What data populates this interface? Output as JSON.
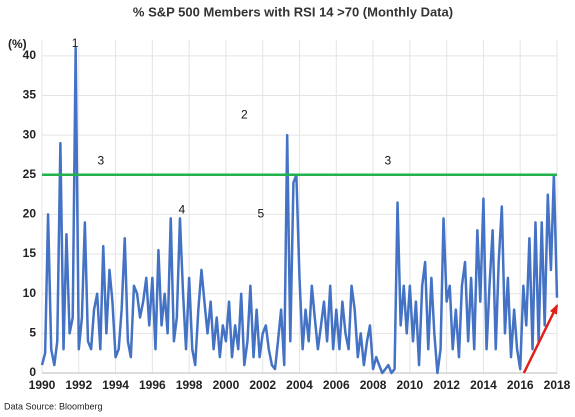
{
  "chart_data": {
    "type": "line",
    "title": "% S&P 500 Members with RSI 14 >70 (Monthly Data)",
    "y_label": "(%)",
    "source": "Data Source:  Bloomberg",
    "color": "#4472c4",
    "x": [
      1990,
      1990.17,
      1990.33,
      1990.5,
      1990.67,
      1990.83,
      1991,
      1991.17,
      1991.33,
      1991.5,
      1991.67,
      1991.83,
      1992,
      1992.17,
      1992.33,
      1992.5,
      1992.67,
      1992.83,
      1993,
      1993.17,
      1993.33,
      1993.5,
      1993.67,
      1993.83,
      1994,
      1994.17,
      1994.33,
      1994.5,
      1994.67,
      1994.83,
      1995,
      1995.17,
      1995.33,
      1995.5,
      1995.67,
      1995.83,
      1996,
      1996.17,
      1996.33,
      1996.5,
      1996.67,
      1996.83,
      1997,
      1997.17,
      1997.33,
      1997.5,
      1997.67,
      1997.83,
      1998,
      1998.17,
      1998.33,
      1998.5,
      1998.67,
      1998.83,
      1999,
      1999.17,
      1999.33,
      1999.5,
      1999.67,
      1999.83,
      2000,
      2000.17,
      2000.33,
      2000.5,
      2000.67,
      2000.83,
      2001,
      2001.17,
      2001.33,
      2001.5,
      2001.67,
      2001.83,
      2002,
      2002.17,
      2002.33,
      2002.5,
      2002.67,
      2002.83,
      2003,
      2003.17,
      2003.33,
      2003.5,
      2003.67,
      2003.83,
      2004,
      2004.17,
      2004.33,
      2004.5,
      2004.67,
      2004.83,
      2005,
      2005.17,
      2005.33,
      2005.5,
      2005.67,
      2005.83,
      2006,
      2006.17,
      2006.33,
      2006.5,
      2006.67,
      2006.83,
      2007,
      2007.17,
      2007.33,
      2007.5,
      2007.67,
      2007.83,
      2008,
      2008.17,
      2008.33,
      2008.5,
      2008.67,
      2008.83,
      2009,
      2009.17,
      2009.33,
      2009.5,
      2009.67,
      2009.83,
      2010,
      2010.17,
      2010.33,
      2010.5,
      2010.67,
      2010.83,
      2011,
      2011.17,
      2011.33,
      2011.5,
      2011.67,
      2011.83,
      2012,
      2012.17,
      2012.33,
      2012.5,
      2012.67,
      2012.83,
      2013,
      2013.17,
      2013.33,
      2013.5,
      2013.67,
      2013.83,
      2014,
      2014.17,
      2014.33,
      2014.5,
      2014.67,
      2014.83,
      2015,
      2015.17,
      2015.33,
      2015.5,
      2015.67,
      2015.83,
      2016,
      2016.17,
      2016.33,
      2016.5,
      2016.67,
      2016.83,
      2017,
      2017.17,
      2017.33,
      2017.5,
      2017.67,
      2017.83,
      2018
    ],
    "values": [
      1,
      2.5,
      20,
      3,
      1,
      4,
      29,
      3,
      17.5,
      5,
      7,
      41,
      3,
      7,
      19,
      4,
      3,
      8,
      10,
      3,
      16,
      5,
      13,
      9,
      2,
      3,
      8,
      17,
      4,
      2,
      11,
      10,
      7,
      9,
      12,
      6,
      12,
      3,
      15.5,
      6,
      10,
      5,
      19.5,
      4,
      7,
      19.5,
      10,
      3,
      12,
      3,
      1,
      8,
      13,
      9,
      5,
      9,
      3,
      7,
      2,
      6,
      4,
      9,
      2,
      6,
      3,
      10,
      1,
      4,
      11,
      2,
      8,
      2,
      5,
      6,
      3,
      1,
      0.5,
      4,
      8,
      1,
      30,
      4,
      24,
      25,
      12,
      3,
      8,
      4,
      11,
      7,
      3,
      6,
      9,
      4,
      11,
      3,
      8,
      3,
      9,
      5,
      3,
      11,
      8,
      2,
      5,
      1,
      4,
      6,
      0.5,
      2,
      1,
      0,
      0.5,
      1,
      0,
      0.5,
      21.5,
      6,
      11,
      5,
      11,
      4,
      9,
      1,
      11,
      14,
      3,
      12,
      5,
      0,
      3,
      19.5,
      9,
      11,
      3,
      8,
      2,
      11,
      14,
      4,
      12,
      3,
      18,
      9,
      22,
      3,
      11,
      18,
      3,
      14,
      21,
      5,
      12,
      2,
      8,
      3,
      0.5,
      11,
      6,
      17,
      3,
      19,
      4,
      19,
      6,
      22.5,
      13,
      25,
      9.5
    ],
    "xlim": [
      1990,
      2018
    ],
    "xticks": [
      1990,
      1992,
      1994,
      1996,
      1998,
      2000,
      2002,
      2004,
      2006,
      2008,
      2010,
      2012,
      2014,
      2016,
      2018
    ],
    "ylim": [
      0,
      42
    ],
    "yticks": [
      0,
      5,
      10,
      15,
      20,
      25,
      30,
      35,
      40
    ],
    "grid": true,
    "threshold": {
      "value": 25,
      "color": "#22b14c"
    },
    "trend_arrow": {
      "x": [
        2016.2,
        2018
      ],
      "y": [
        0,
        8.5
      ],
      "color": "#e0201b"
    },
    "annotations": [
      {
        "text": "1",
        "x": 1991.8,
        "y": 41.5
      },
      {
        "text": "2",
        "x": 2001,
        "y": 32.5
      },
      {
        "text": "3",
        "x": 1993.2,
        "y": 26.7
      },
      {
        "text": "3",
        "x": 2008.8,
        "y": 26.7
      },
      {
        "text": "4",
        "x": 1997.6,
        "y": 20.5
      },
      {
        "text": "5",
        "x": 2001.9,
        "y": 20
      }
    ]
  }
}
